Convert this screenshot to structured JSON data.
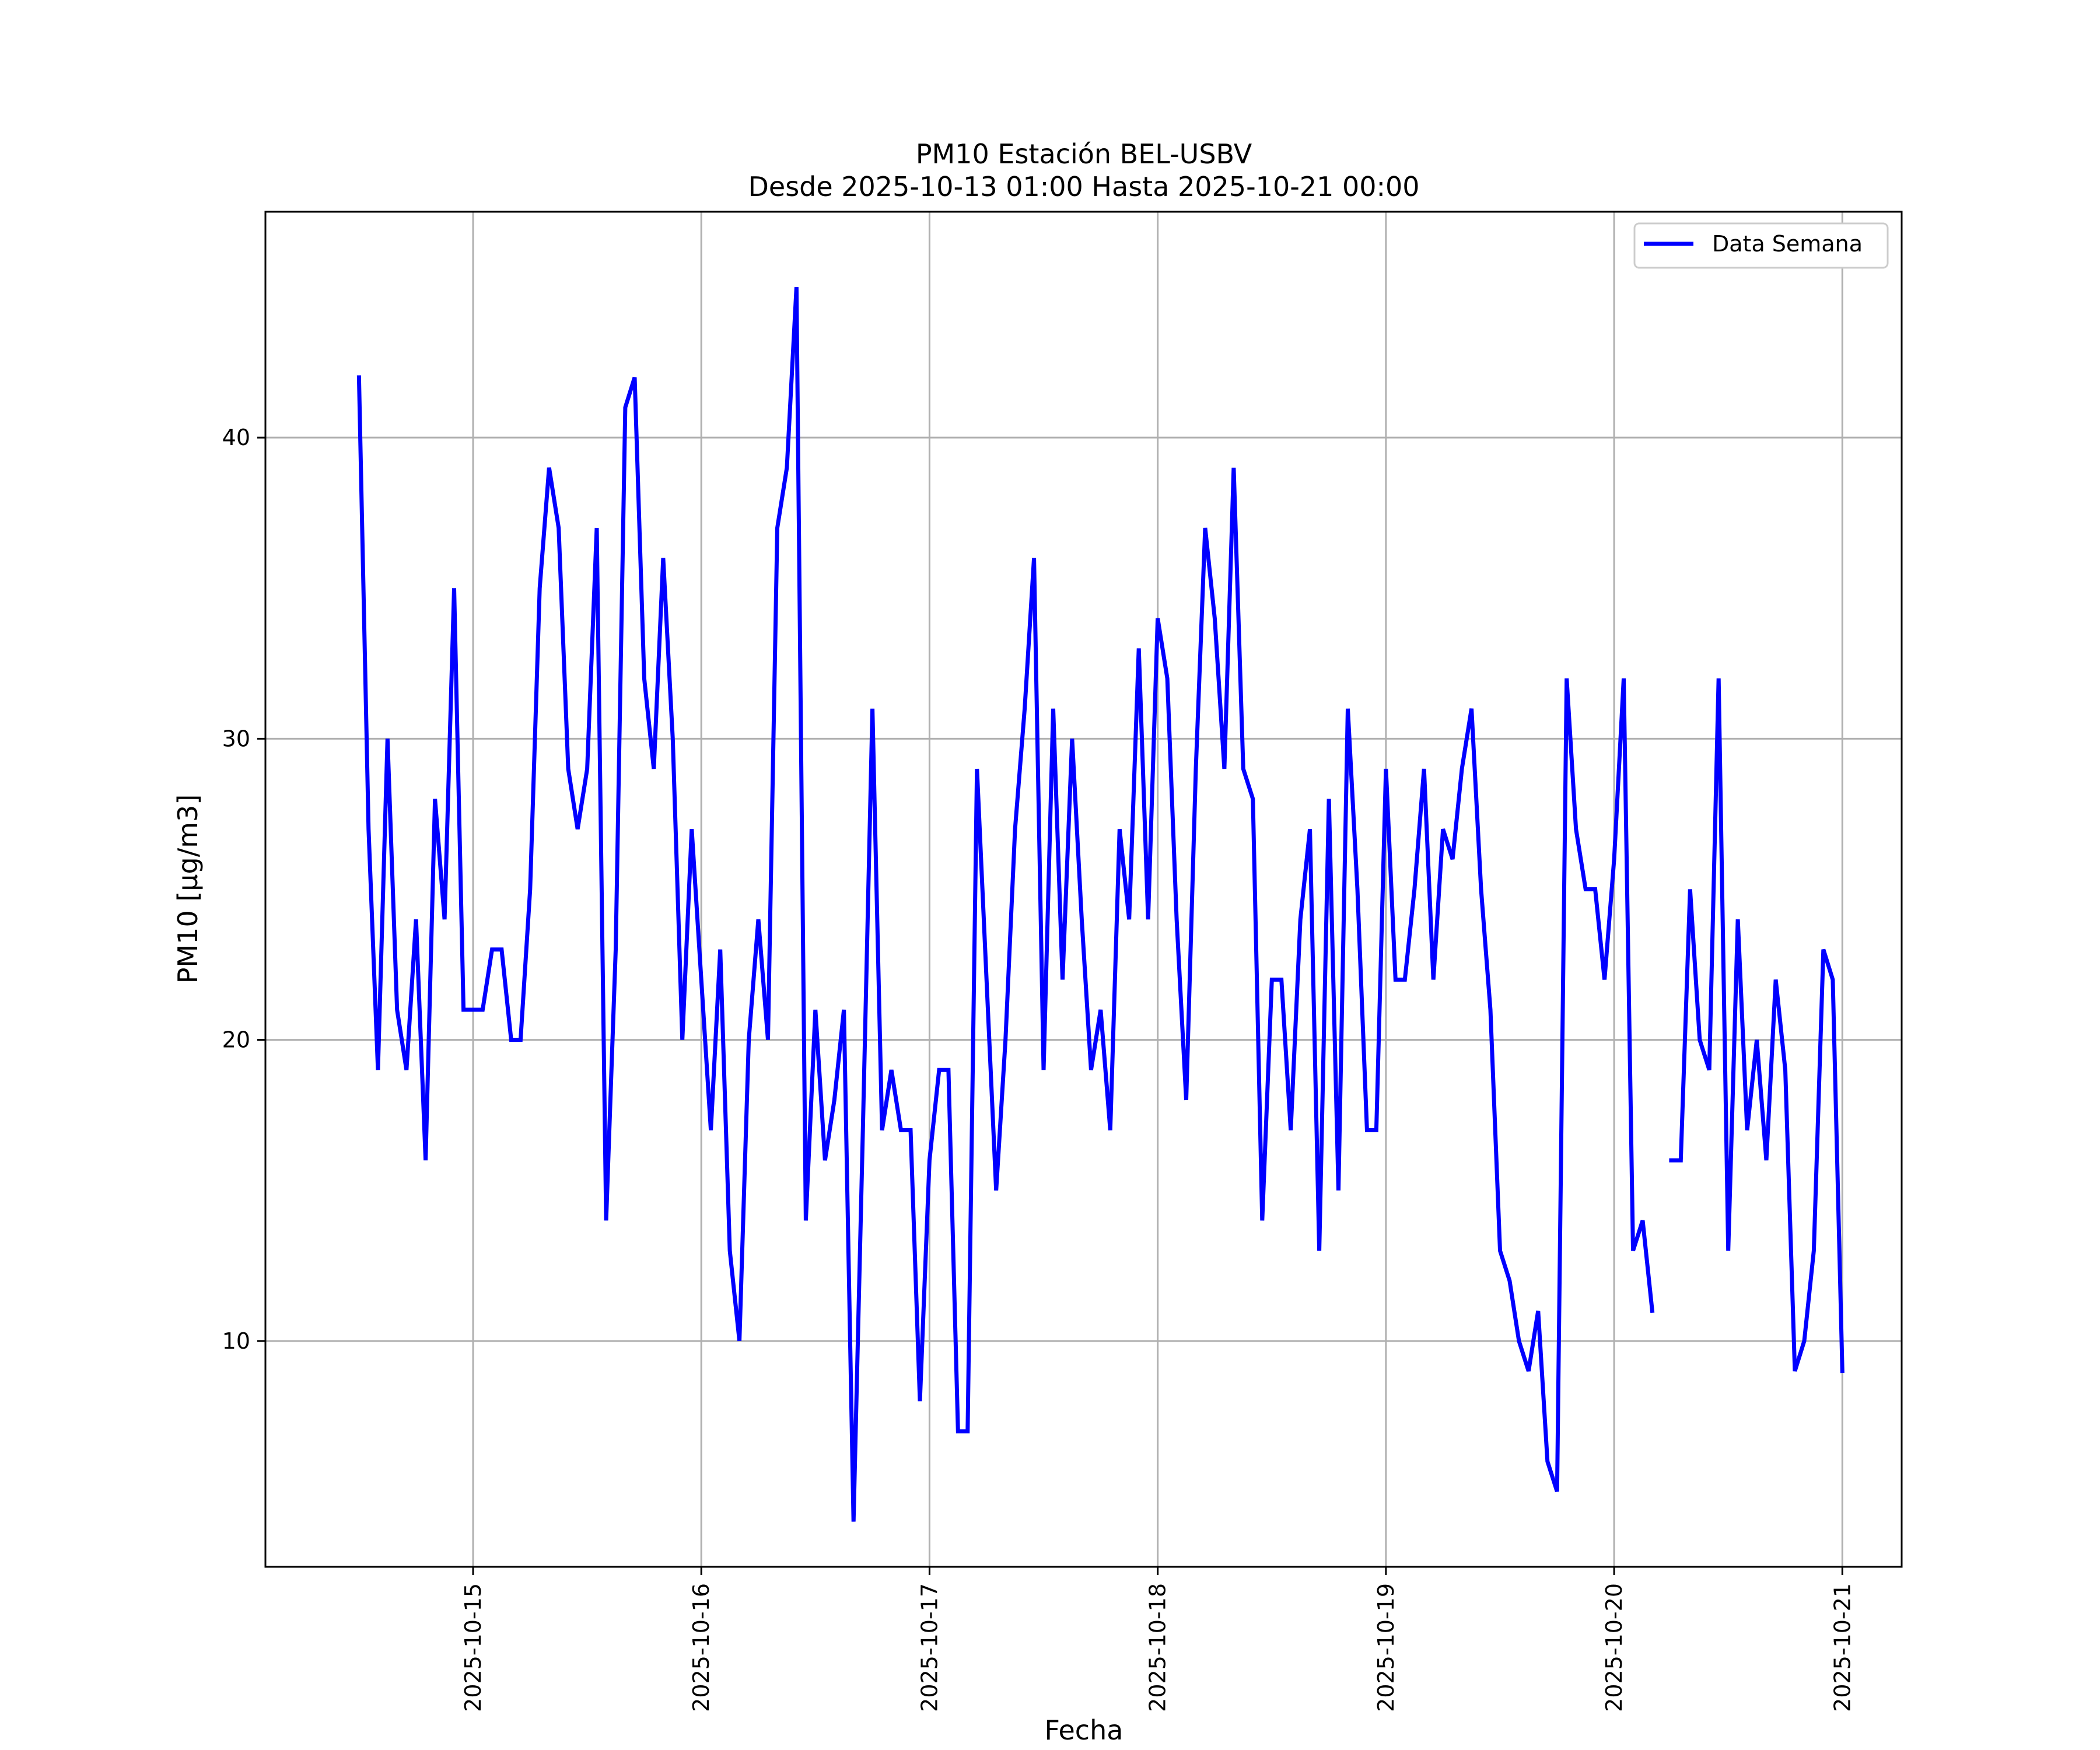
{
  "chart_data": {
    "type": "line",
    "title": "PM10 Estación BEL-USBV",
    "subtitle": "Desde 2025-10-13 01:00 Hasta 2025-10-21 00:00",
    "xlabel": "Fecha",
    "ylabel": "PM10 [μg/m3]",
    "grid": true,
    "legend_position": "upper-right",
    "xlim_days": [
      -0.91,
      6.26
    ],
    "ylim": [
      2.5,
      47.5
    ],
    "xticks": [
      {
        "day": 0,
        "label": "2025-10-15"
      },
      {
        "day": 1,
        "label": "2025-10-16"
      },
      {
        "day": 2,
        "label": "2025-10-17"
      },
      {
        "day": 3,
        "label": "2025-10-18"
      },
      {
        "day": 4,
        "label": "2025-10-19"
      },
      {
        "day": 5,
        "label": "2025-10-20"
      },
      {
        "day": 6,
        "label": "2025-10-21"
      }
    ],
    "yticks": [
      10,
      20,
      30,
      40
    ],
    "x_unit": "days after 2025-10-15 00:00",
    "series": [
      {
        "name": "Data Semana",
        "color": "#0000ff",
        "points": [
          [
            -0.5,
            42
          ],
          [
            -0.458,
            27
          ],
          [
            -0.417,
            19
          ],
          [
            -0.375,
            30
          ],
          [
            -0.333,
            21
          ],
          [
            -0.292,
            19
          ],
          [
            -0.25,
            24
          ],
          [
            -0.208,
            16
          ],
          [
            -0.167,
            28
          ],
          [
            -0.125,
            24
          ],
          [
            -0.083,
            35
          ],
          [
            -0.042,
            21
          ],
          [
            0.0,
            21
          ],
          [
            0.042,
            21
          ],
          [
            0.083,
            23
          ],
          [
            0.125,
            23
          ],
          [
            0.167,
            20
          ],
          [
            0.208,
            20
          ],
          [
            0.25,
            25
          ],
          [
            0.292,
            35
          ],
          [
            0.333,
            39
          ],
          [
            0.375,
            37
          ],
          [
            0.417,
            29
          ],
          [
            0.458,
            27
          ],
          [
            0.5,
            29
          ],
          [
            0.542,
            37
          ],
          [
            0.583,
            14
          ],
          [
            0.625,
            23
          ],
          [
            0.667,
            41
          ],
          [
            0.708,
            42
          ],
          [
            0.75,
            32
          ],
          [
            0.792,
            29
          ],
          [
            0.833,
            36
          ],
          [
            0.875,
            30
          ],
          [
            0.917,
            20
          ],
          [
            0.958,
            27
          ],
          [
            1.0,
            22
          ],
          [
            1.042,
            17
          ],
          [
            1.083,
            23
          ],
          [
            1.125,
            13
          ],
          [
            1.167,
            10
          ],
          [
            1.208,
            20
          ],
          [
            1.25,
            24
          ],
          [
            1.292,
            20
          ],
          [
            1.333,
            37
          ],
          [
            1.375,
            39
          ],
          [
            1.417,
            45
          ],
          [
            1.458,
            14
          ],
          [
            1.5,
            21
          ],
          [
            1.542,
            16
          ],
          [
            1.583,
            18
          ],
          [
            1.625,
            21
          ],
          [
            1.667,
            4
          ],
          [
            1.708,
            17
          ],
          [
            1.75,
            31
          ],
          [
            1.792,
            17
          ],
          [
            1.833,
            19
          ],
          [
            1.875,
            17
          ],
          [
            1.917,
            17
          ],
          [
            1.958,
            8
          ],
          [
            2.0,
            16
          ],
          [
            2.042,
            19
          ],
          [
            2.083,
            19
          ],
          [
            2.125,
            7
          ],
          [
            2.167,
            7
          ],
          [
            2.208,
            29
          ],
          [
            2.25,
            22
          ],
          [
            2.292,
            15
          ],
          [
            2.333,
            20
          ],
          [
            2.375,
            27
          ],
          [
            2.417,
            31
          ],
          [
            2.458,
            36
          ],
          [
            2.5,
            19
          ],
          [
            2.542,
            31
          ],
          [
            2.583,
            22
          ],
          [
            2.625,
            30
          ],
          [
            2.667,
            24
          ],
          [
            2.708,
            19
          ],
          [
            2.75,
            21
          ],
          [
            2.792,
            17
          ],
          [
            2.833,
            27
          ],
          [
            2.875,
            24
          ],
          [
            2.917,
            33
          ],
          [
            2.958,
            24
          ],
          [
            3.0,
            34
          ],
          [
            3.042,
            32
          ],
          [
            3.083,
            24
          ],
          [
            3.125,
            18
          ],
          [
            3.167,
            29
          ],
          [
            3.208,
            37
          ],
          [
            3.25,
            34
          ],
          [
            3.292,
            29
          ],
          [
            3.333,
            39
          ],
          [
            3.375,
            29
          ],
          [
            3.417,
            28
          ],
          [
            3.458,
            14
          ],
          [
            3.5,
            22
          ],
          [
            3.542,
            22
          ],
          [
            3.583,
            17
          ],
          [
            3.625,
            24
          ],
          [
            3.667,
            27
          ],
          [
            3.708,
            13
          ],
          [
            3.75,
            28
          ],
          [
            3.792,
            15
          ],
          [
            3.833,
            31
          ],
          [
            3.875,
            25
          ],
          [
            3.917,
            17
          ],
          [
            3.958,
            17
          ],
          [
            4.0,
            29
          ],
          [
            4.042,
            22
          ],
          [
            4.083,
            22
          ],
          [
            4.125,
            25
          ],
          [
            4.167,
            29
          ],
          [
            4.208,
            22
          ],
          [
            4.25,
            27
          ],
          [
            4.292,
            26
          ],
          [
            4.333,
            29
          ],
          [
            4.375,
            31
          ],
          [
            4.417,
            25
          ],
          [
            4.458,
            21
          ],
          [
            4.5,
            13
          ],
          [
            4.542,
            12
          ],
          [
            4.583,
            10
          ],
          [
            4.625,
            9
          ],
          [
            4.667,
            11
          ],
          [
            4.708,
            6
          ],
          [
            4.75,
            5
          ],
          [
            4.792,
            32
          ],
          [
            4.833,
            27
          ],
          [
            4.875,
            25
          ],
          [
            4.917,
            25
          ],
          [
            4.958,
            22
          ],
          [
            5.0,
            26
          ],
          [
            5.042,
            32
          ],
          [
            5.083,
            13
          ],
          [
            5.125,
            14
          ],
          [
            5.167,
            11
          ],
          null,
          [
            5.25,
            16
          ],
          [
            5.292,
            16
          ],
          [
            5.333,
            25
          ],
          [
            5.375,
            20
          ],
          [
            5.417,
            19
          ],
          [
            5.458,
            32
          ],
          [
            5.5,
            13
          ],
          [
            5.542,
            24
          ],
          [
            5.583,
            17
          ],
          [
            5.625,
            20
          ],
          [
            5.667,
            16
          ],
          [
            5.708,
            22
          ],
          [
            5.75,
            19
          ],
          [
            5.792,
            9
          ],
          [
            5.833,
            10
          ],
          [
            5.875,
            13
          ],
          [
            5.917,
            23
          ],
          [
            5.958,
            22
          ],
          [
            6.0,
            9
          ]
        ]
      }
    ]
  }
}
